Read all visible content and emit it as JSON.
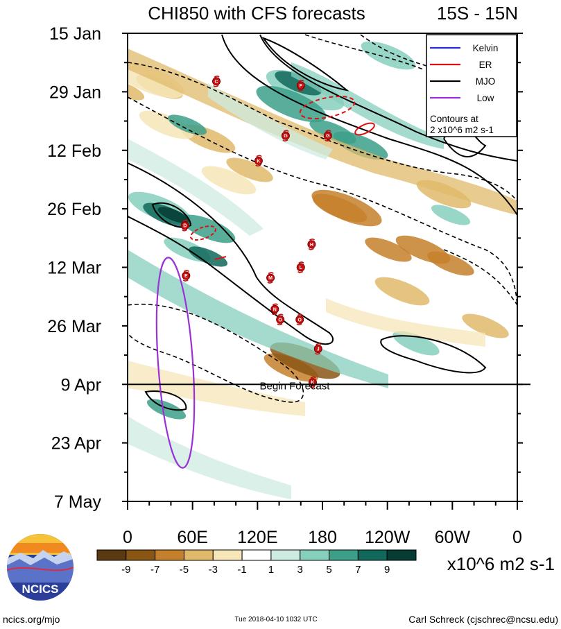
{
  "chart_data": {
    "type": "heatmap",
    "title": "CHI850 with CFS forecasts",
    "subtitle_right": "15S - 15N",
    "x_tick_labels": [
      "0",
      "60E",
      "120E",
      "180",
      "120W",
      "60W",
      "0"
    ],
    "x_ticks_deg": [
      0,
      60,
      120,
      180,
      240,
      300,
      360
    ],
    "xlim": [
      0,
      360
    ],
    "y_tick_labels": [
      "15 Jan",
      "29 Jan",
      "12 Feb",
      "26 Feb",
      "12 Mar",
      "26 Mar",
      "9 Apr",
      "23 Apr",
      "7 May"
    ],
    "y_ticks_day": [
      0,
      14,
      28,
      42,
      56,
      70,
      84,
      98,
      112
    ],
    "ylim_days_from_15_jan": [
      0,
      112
    ],
    "forecast_line_day": 84,
    "forecast_label": "Begin Forecast",
    "colorbar": {
      "levels": [
        "-9",
        "-7",
        "-5",
        "-3",
        "-1",
        "1",
        "3",
        "5",
        "7",
        "9"
      ],
      "colors": [
        "#5a3a10",
        "#8a5614",
        "#c5802b",
        "#e0b96a",
        "#f6e6b8",
        "#ffffff",
        "#cdebe0",
        "#86cfbd",
        "#3c9f8a",
        "#10695a",
        "#063c32"
      ],
      "units": "x10^6 m2 s-1"
    },
    "legend": {
      "placement": "top-right",
      "entries": [
        {
          "name": "Kelvin",
          "color": "#2a2ad8"
        },
        {
          "name": "ER",
          "color": "#e01010"
        },
        {
          "name": "MJO",
          "color": "#000000"
        },
        {
          "name": "Low",
          "color": "#9a30d8"
        }
      ],
      "note_line1": "Contours at",
      "note_line2": "2 x10^6 m2 s-1"
    },
    "storms": [
      {
        "letter": "C",
        "lon": 82,
        "day": 11.5
      },
      {
        "letter": "F",
        "lon": 160,
        "day": 12.5
      },
      {
        "letter": "G",
        "lon": 185,
        "day": 24.5
      },
      {
        "letter": "G",
        "lon": 146,
        "day": 24.5
      },
      {
        "letter": "K",
        "lon": 121,
        "day": 30.5
      },
      {
        "letter": "D",
        "lon": 53,
        "day": 46
      },
      {
        "letter": "H",
        "lon": 170,
        "day": 50.5
      },
      {
        "letter": "L",
        "lon": 160,
        "day": 56
      },
      {
        "letter": "E",
        "lon": 54,
        "day": 58
      },
      {
        "letter": "M",
        "lon": 132,
        "day": 58.5
      },
      {
        "letter": "N",
        "lon": 136,
        "day": 66
      },
      {
        "letter": "O",
        "lon": 141,
        "day": 68.5
      },
      {
        "letter": "O",
        "lon": 159,
        "day": 68.5
      },
      {
        "letter": "J",
        "lon": 176,
        "day": 75.5
      },
      {
        "letter": "K",
        "lon": 171,
        "day": 83.5
      }
    ]
  },
  "footer": {
    "website": "ncics.org/mjo",
    "timestamp": "Tue 2018-04-10 1032 UTC",
    "author": "Carl Schreck (cjschrec@ncsu.edu)",
    "logo_text": "NCICS"
  }
}
